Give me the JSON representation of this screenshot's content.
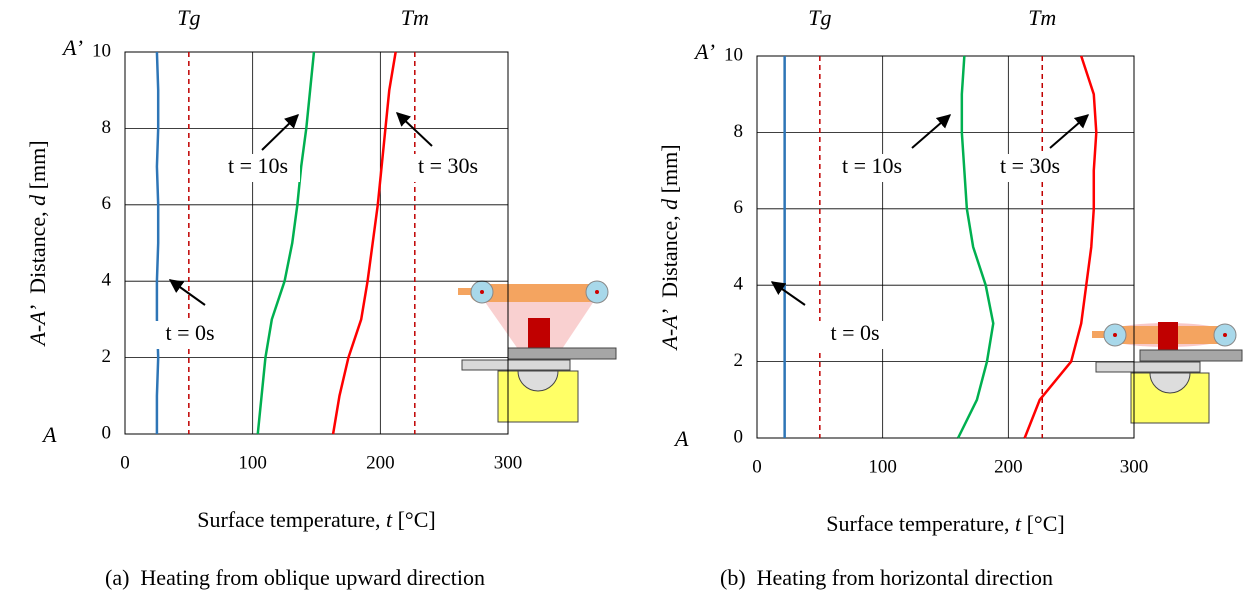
{
  "chart_data": [
    {
      "type": "line",
      "caption": "(a)  Heating from oblique upward direction",
      "xlabel": [
        "Surface temperature, ",
        "t",
        " [°C]"
      ],
      "ylabel": [
        "A-A’",
        "  Distance, ",
        "d",
        " [mm]"
      ],
      "y_end_labels": {
        "top": "A’",
        "bottom": "A"
      },
      "xlim": [
        0,
        300
      ],
      "xticks": [
        0,
        100,
        200,
        300
      ],
      "ylim": [
        0,
        10
      ],
      "yticks": [
        0,
        2,
        4,
        6,
        8,
        10
      ],
      "grid": true,
      "ref_lines": [
        {
          "label": "Tg",
          "value": 50,
          "color": "#c00000"
        },
        {
          "label": "Tm",
          "value": 227,
          "color": "#c00000"
        }
      ],
      "y": [
        0,
        1,
        2,
        3,
        4,
        5,
        6,
        7,
        8,
        9,
        10
      ],
      "series": [
        {
          "name": "t = 0s",
          "color": "#2e75b6",
          "values": [
            25,
            25,
            26,
            25,
            25,
            26,
            26,
            25,
            26,
            26,
            25
          ]
        },
        {
          "name": "t = 10s",
          "color": "#00b050",
          "values": [
            104,
            107,
            110,
            115,
            125,
            131,
            135,
            138,
            142,
            145,
            148
          ]
        },
        {
          "name": "t = 30s",
          "color": "#ff0000",
          "values": [
            163,
            168,
            175,
            185,
            190,
            194,
            198,
            201,
            204,
            207,
            212
          ]
        }
      ]
    },
    {
      "type": "line",
      "caption": "(b)  Heating from horizontal direction",
      "xlabel": [
        "Surface temperature, ",
        "t",
        " [°C]"
      ],
      "ylabel": [
        "A-A’",
        "  Distance, ",
        "d",
        " [mm]"
      ],
      "y_end_labels": {
        "top": "A’",
        "bottom": "A"
      },
      "xlim": [
        0,
        300
      ],
      "xticks": [
        0,
        100,
        200,
        300
      ],
      "ylim": [
        0,
        10
      ],
      "yticks": [
        0,
        2,
        4,
        6,
        8,
        10
      ],
      "grid": true,
      "ref_lines": [
        {
          "label": "Tg",
          "value": 50,
          "color": "#c00000"
        },
        {
          "label": "Tm",
          "value": 227,
          "color": "#c00000"
        }
      ],
      "y": [
        0,
        1,
        2,
        3,
        4,
        5,
        6,
        7,
        8,
        9,
        10
      ],
      "series": [
        {
          "name": "t = 0s",
          "color": "#2e75b6",
          "values": [
            22,
            22,
            22,
            22,
            22,
            22,
            22,
            22,
            22,
            22,
            22
          ]
        },
        {
          "name": "t = 10s",
          "color": "#00b050",
          "values": [
            160,
            175,
            183,
            188,
            182,
            172,
            167,
            165,
            163,
            163,
            165
          ]
        },
        {
          "name": "t = 30s",
          "color": "#ff0000",
          "values": [
            213,
            225,
            250,
            258,
            262,
            266,
            268,
            268,
            270,
            268,
            258
          ]
        }
      ]
    }
  ]
}
